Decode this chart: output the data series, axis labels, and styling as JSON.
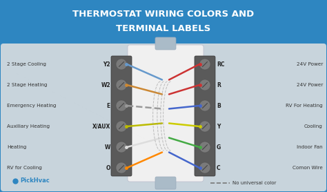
{
  "title_line1": "THERMOSTAT WIRING COLORS AND",
  "title_line2": "TERMINAL LABELS",
  "title_bg": "#2e86c1",
  "title_color": "white",
  "body_bg": "#c8d4dc",
  "terminal_bg": "#5a5a5a",
  "left_labels": [
    "2 Stage Cooling",
    "2 Stage Heating",
    "Emergency Heating",
    "Auxiliary Heating",
    "Heating",
    "RV for Cooling"
  ],
  "left_terminals": [
    "Y2",
    "W2",
    "E",
    "X/AUX",
    "W",
    "O"
  ],
  "right_terminals": [
    "RC",
    "R",
    "B",
    "Y",
    "G",
    "C"
  ],
  "right_labels": [
    "24V Power",
    "24V Power",
    "RV For Heating",
    "Cooling",
    "Indoor Fan",
    "Comon Wire"
  ],
  "left_wire_colors": [
    "#6699cc",
    "#cc8833",
    "#999999",
    "#bbbb00",
    "#dddddd",
    "#ff8800"
  ],
  "right_wire_colors": [
    "#cc3333",
    "#cc3333",
    "#4466cc",
    "#cccc00",
    "#44aa44",
    "#4466cc"
  ],
  "brand_color": "#2e86c1",
  "brand_text": "PickHvac",
  "legend_text": "No universal color",
  "wire_center_bg": "#f0f0f0",
  "nub_color": "#aabbc8",
  "screw_color": "#7a7a7a",
  "screw_line_color": "#444444"
}
